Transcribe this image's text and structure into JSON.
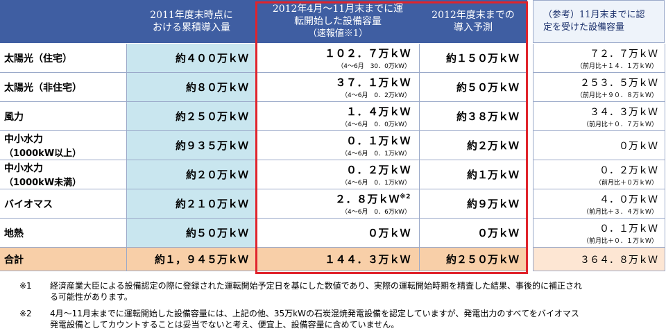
{
  "headers": {
    "cumulative": [
      "2011年度末時点に",
      "おける累積導入量"
    ],
    "operating": [
      "2012年4月～11月末までに運",
      "転開始した設備容量",
      "（速報値※1）"
    ],
    "forecast": [
      "2012年度末までの",
      "導入予測"
    ],
    "reference": [
      "（参考）11月末までに認",
      "定を受けた設備容量"
    ]
  },
  "rows": [
    {
      "label": "太陽光（住宅）",
      "label_sub": "",
      "cumulative": "約４００万ｋＷ",
      "operating": "１０２．７万ｋＷ",
      "operating_detail": "（4～6月　30．0万kW）",
      "forecast": "約１５０万ｋＷ",
      "certified": "７２．７万ｋＷ",
      "certified_detail": "（前月比＋１４．１万ｋＷ）"
    },
    {
      "label": "太陽光（非住宅）",
      "label_sub": "",
      "cumulative": "約８０万ｋＷ",
      "operating": "３７．１万ｋＷ",
      "operating_detail": "（4～6月　0．2万kW）",
      "forecast": "約５０万ｋＷ",
      "certified": "２５３．５万ｋＷ",
      "certified_detail": "（前月比＋９０．８万ｋＷ）"
    },
    {
      "label": "風力",
      "label_sub": "",
      "cumulative": "約２５０万ｋＷ",
      "operating": "１．４万ｋＷ",
      "operating_detail": "（4～6月　0．0万kW）",
      "forecast": "約３８万ｋＷ",
      "certified": "３４．３万ｋＷ",
      "certified_detail": "（前月比＋０．７万ｋＷ）"
    },
    {
      "label": "中小水力",
      "label_sub": "（1000kW以上）",
      "cumulative": "約９３５万ｋＷ",
      "operating": "０．１万ｋＷ",
      "operating_detail": "（4～6月　0．1万kW）",
      "forecast": "約２万ｋＷ",
      "certified": "０万ｋＷ",
      "certified_detail": ""
    },
    {
      "label": "中小水力",
      "label_sub": "（1000kW未満）",
      "cumulative": "約２０万ｋＷ",
      "operating": "０．２万ｋＷ",
      "operating_detail": "（4～6月　0．1万kW）",
      "forecast": "約１万ｋＷ",
      "certified": "０．２万ｋＷ",
      "certified_detail": "（前月比＋０万ｋＷ）"
    },
    {
      "label": "バイオマス",
      "label_sub": "",
      "cumulative": "約２１０万ｋＷ",
      "operating": "２．８万ｋＷ",
      "operating_sup": "※2",
      "operating_detail": "（4～6月　0．6万kW）",
      "forecast": "約９万ｋＷ",
      "certified": "４．０万ｋＷ",
      "certified_detail": "（前月比＋３．４万ｋＷ）"
    },
    {
      "label": "地熱",
      "label_sub": "",
      "cumulative": "約５０万ｋＷ",
      "operating": "０万ｋＷ",
      "operating_detail": "",
      "forecast": "０万ｋＷ",
      "certified": "０．１万ｋＷ",
      "certified_detail": "（前月比＋０．１万ｋＷ）"
    }
  ],
  "total": {
    "label": "合計",
    "cumulative": "約１，９４５万ｋＷ",
    "operating": "１４４．３万ｋＷ",
    "forecast": "約２５０万ｋＷ",
    "certified": "３６４．８万ｋＷ"
  },
  "notes": [
    {
      "mark": "※1",
      "line1": "経済産業大臣による設備認定の際に登録された運転開始予定日を基にした数値であり、実際の運転開始時期を精査した結果、事後的に補正され",
      "line2": "る可能性があります。"
    },
    {
      "mark": "※2",
      "line1": "4月～11月末までに運転開始した設備容量には、上記の他、35万kWの石炭混焼発電設備を認定していますが、発電出力のすべてをバイオマス",
      "line2": "発電設備としてカウントすることは妥当でないと考え、便宜上、設備容量に含めていません。"
    }
  ],
  "colors": {
    "header": "#3f5ea2",
    "cumulative_col": "#c9e6ef",
    "total_row": "#f8cfa8",
    "highlight_box": "#e0242c"
  }
}
